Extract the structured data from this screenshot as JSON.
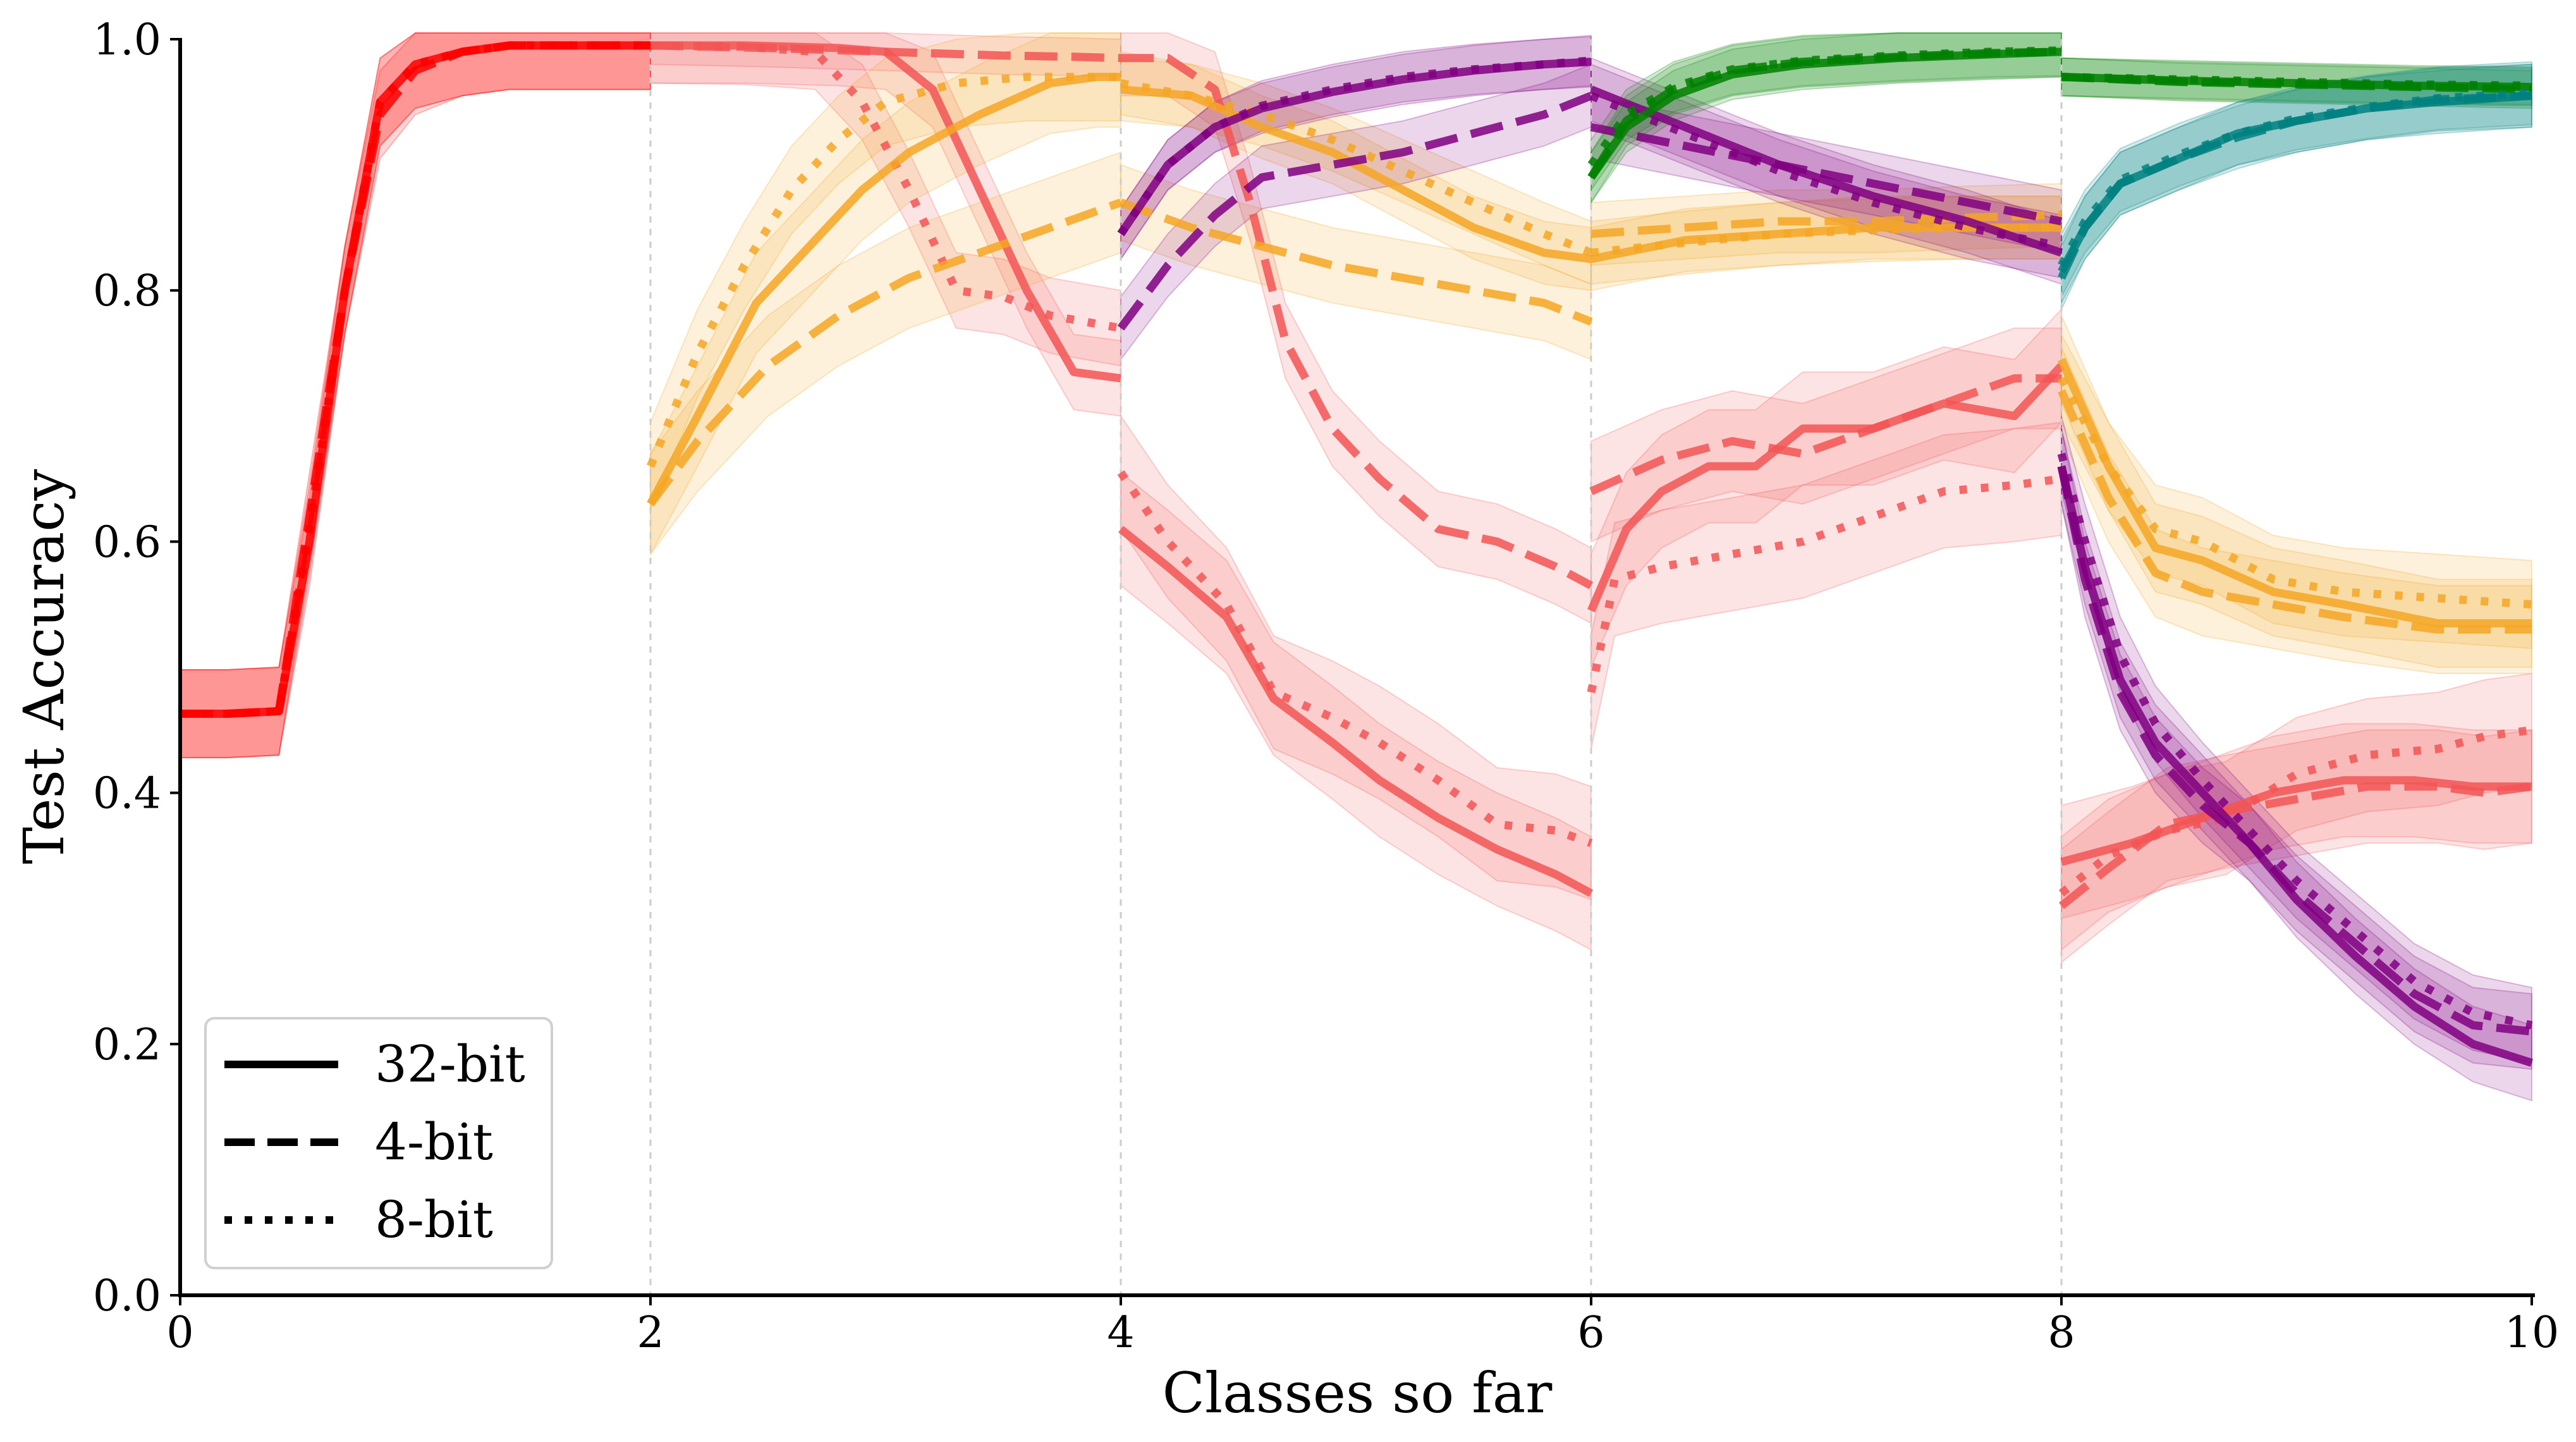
{
  "chart_data": {
    "type": "line",
    "xlabel": "Classes so far",
    "ylabel": "Test Accuracy",
    "xlim": [
      0,
      10
    ],
    "ylim": [
      0,
      1
    ],
    "xticks": [
      "0",
      "2",
      "4",
      "6",
      "8",
      "10"
    ],
    "yticks": [
      "0.0",
      "0.2",
      "0.4",
      "0.6",
      "0.8",
      "1.0"
    ],
    "task_boundaries": [
      2,
      4,
      6,
      8
    ],
    "grid": false,
    "legend_position": "lower-left",
    "legend": [
      {
        "label": "32-bit",
        "style": "solid"
      },
      {
        "label": "4-bit",
        "style": "dashed"
      },
      {
        "label": "8-bit",
        "style": "dotted"
      }
    ],
    "colors": {
      "class-0-1": "#ff0000",
      "class-2-3": "#f5a623",
      "class-4-5": "#800080",
      "class-6-7": "#008000",
      "class-8-9": "#008080",
      "class-0-1-late": "#f25555"
    },
    "series": [
      {
        "color": "class-0-1",
        "style": "solid",
        "x": [
          0,
          0.2,
          0.42,
          0.55,
          0.7,
          0.85,
          1.0,
          1.2,
          1.4,
          1.6,
          2.0
        ],
        "y": [
          0.463,
          0.463,
          0.465,
          0.6,
          0.8,
          0.95,
          0.98,
          0.99,
          0.995,
          0.995,
          0.995
        ],
        "band": 0.035
      },
      {
        "color": "class-0-1",
        "style": "dashed",
        "x": [
          0,
          0.2,
          0.42,
          0.55,
          0.7,
          0.85,
          1.0,
          1.2,
          1.4,
          1.6,
          2.0
        ],
        "y": [
          0.463,
          0.463,
          0.465,
          0.62,
          0.8,
          0.94,
          0.975,
          0.99,
          0.995,
          0.995,
          0.995
        ],
        "band": 0.035
      },
      {
        "color": "class-0-1",
        "style": "dotted",
        "x": [
          0,
          0.2,
          0.42,
          0.55,
          0.7,
          0.85,
          1.0,
          1.2,
          1.4,
          1.6,
          2.0
        ],
        "y": [
          0.463,
          0.463,
          0.465,
          0.61,
          0.8,
          0.95,
          0.98,
          0.99,
          0.995,
          0.995,
          0.995
        ],
        "band": 0.035
      },
      {
        "color": "class-0-1-late",
        "style": "solid",
        "x": [
          2,
          2.4,
          2.8,
          3.0,
          3.2,
          3.4,
          3.6,
          3.8,
          4.0
        ],
        "y": [
          0.995,
          0.995,
          0.993,
          0.99,
          0.96,
          0.88,
          0.8,
          0.735,
          0.73
        ],
        "band": 0.03
      },
      {
        "color": "class-0-1-late",
        "style": "dashed",
        "x": [
          2,
          2.5,
          3.0,
          3.5,
          3.8,
          4.0
        ],
        "y": [
          0.995,
          0.993,
          0.99,
          0.987,
          0.986,
          0.985
        ],
        "band": 0.015
      },
      {
        "color": "class-0-1-late",
        "style": "dotted",
        "x": [
          2,
          2.4,
          2.7,
          2.9,
          3.1,
          3.3,
          3.5,
          3.7,
          4.0
        ],
        "y": [
          0.995,
          0.994,
          0.99,
          0.95,
          0.88,
          0.8,
          0.795,
          0.78,
          0.77
        ],
        "band": 0.03
      },
      {
        "color": "class-2-3",
        "style": "solid",
        "x": [
          2.0,
          2.2,
          2.45,
          2.7,
          2.9,
          3.1,
          3.4,
          3.7,
          3.9,
          4.0
        ],
        "y": [
          0.63,
          0.7,
          0.79,
          0.84,
          0.88,
          0.91,
          0.94,
          0.965,
          0.97,
          0.97
        ],
        "band": 0.04
      },
      {
        "color": "class-2-3",
        "style": "dashed",
        "x": [
          2.0,
          2.2,
          2.5,
          2.8,
          3.1,
          3.4,
          3.7,
          4.0
        ],
        "y": [
          0.63,
          0.68,
          0.74,
          0.78,
          0.81,
          0.83,
          0.85,
          0.87
        ],
        "band": 0.04
      },
      {
        "color": "class-2-3",
        "style": "dotted",
        "x": [
          2.0,
          2.2,
          2.4,
          2.6,
          2.8,
          3.0,
          3.3,
          3.6,
          4.0
        ],
        "y": [
          0.66,
          0.75,
          0.82,
          0.88,
          0.92,
          0.95,
          0.965,
          0.97,
          0.97
        ],
        "band": 0.035
      },
      {
        "color": "class-0-1-late",
        "style": "solid",
        "x": [
          4.0,
          4.2,
          4.45,
          4.65,
          4.9,
          5.1,
          5.35,
          5.6,
          5.85,
          6.0
        ],
        "y": [
          0.61,
          0.58,
          0.54,
          0.475,
          0.44,
          0.41,
          0.38,
          0.355,
          0.335,
          0.32
        ],
        "band": 0.045
      },
      {
        "color": "class-0-1-late",
        "style": "dashed",
        "x": [
          4.0,
          4.2,
          4.4,
          4.55,
          4.7,
          4.9,
          5.1,
          5.35,
          5.6,
          5.85,
          6.0
        ],
        "y": [
          0.985,
          0.985,
          0.96,
          0.87,
          0.76,
          0.69,
          0.65,
          0.61,
          0.6,
          0.58,
          0.565
        ],
        "band": 0.03
      },
      {
        "color": "class-0-1-late",
        "style": "dotted",
        "x": [
          4.0,
          4.2,
          4.45,
          4.65,
          4.9,
          5.1,
          5.35,
          5.6,
          5.85,
          6.0
        ],
        "y": [
          0.655,
          0.6,
          0.55,
          0.48,
          0.46,
          0.44,
          0.41,
          0.375,
          0.37,
          0.36
        ],
        "band": 0.045
      },
      {
        "color": "class-2-3",
        "style": "solid",
        "x": [
          4.0,
          4.3,
          4.6,
          4.9,
          5.2,
          5.5,
          5.8,
          6.0
        ],
        "y": [
          0.96,
          0.955,
          0.93,
          0.91,
          0.88,
          0.85,
          0.83,
          0.825
        ],
        "band": 0.025
      },
      {
        "color": "class-2-3",
        "style": "dashed",
        "x": [
          4.0,
          4.3,
          4.6,
          4.9,
          5.2,
          5.5,
          5.8,
          6.0
        ],
        "y": [
          0.87,
          0.85,
          0.835,
          0.82,
          0.81,
          0.8,
          0.79,
          0.775
        ],
        "band": 0.03
      },
      {
        "color": "class-2-3",
        "style": "dotted",
        "x": [
          4.0,
          4.3,
          4.6,
          4.9,
          5.2,
          5.5,
          5.8,
          6.0
        ],
        "y": [
          0.965,
          0.955,
          0.94,
          0.92,
          0.895,
          0.87,
          0.845,
          0.83
        ],
        "band": 0.025
      },
      {
        "color": "class-4-5",
        "style": "solid",
        "x": [
          4.0,
          4.2,
          4.4,
          4.6,
          4.9,
          5.2,
          5.5,
          5.8,
          6.0
        ],
        "y": [
          0.845,
          0.9,
          0.93,
          0.945,
          0.958,
          0.968,
          0.975,
          0.98,
          0.982
        ],
        "band": 0.02
      },
      {
        "color": "class-4-5",
        "style": "dashed",
        "x": [
          4.0,
          4.2,
          4.4,
          4.6,
          4.9,
          5.2,
          5.5,
          5.8,
          6.0
        ],
        "y": [
          0.77,
          0.82,
          0.86,
          0.89,
          0.9,
          0.91,
          0.925,
          0.94,
          0.955
        ],
        "band": 0.025
      },
      {
        "color": "class-4-5",
        "style": "dotted",
        "x": [
          4.0,
          4.2,
          4.4,
          4.6,
          4.9,
          5.2,
          5.5,
          5.8,
          6.0
        ],
        "y": [
          0.845,
          0.9,
          0.93,
          0.947,
          0.96,
          0.97,
          0.976,
          0.98,
          0.983
        ],
        "band": 0.02
      },
      {
        "color": "class-0-1-late",
        "style": "solid",
        "x": [
          6.0,
          6.15,
          6.3,
          6.5,
          6.7,
          6.9,
          7.2,
          7.5,
          7.8,
          8.0
        ],
        "y": [
          0.545,
          0.61,
          0.64,
          0.66,
          0.66,
          0.69,
          0.69,
          0.71,
          0.7,
          0.74
        ],
        "band": 0.045
      },
      {
        "color": "class-0-1-late",
        "style": "dashed",
        "x": [
          6.0,
          6.3,
          6.6,
          6.9,
          7.2,
          7.5,
          7.8,
          8.0
        ],
        "y": [
          0.64,
          0.665,
          0.68,
          0.67,
          0.69,
          0.71,
          0.73,
          0.73
        ],
        "band": 0.04
      },
      {
        "color": "class-0-1-late",
        "style": "dotted",
        "x": [
          6.0,
          6.1,
          6.3,
          6.6,
          6.9,
          7.2,
          7.5,
          7.8,
          8.0
        ],
        "y": [
          0.48,
          0.57,
          0.58,
          0.59,
          0.6,
          0.62,
          0.64,
          0.645,
          0.65
        ],
        "band": 0.045
      },
      {
        "color": "class-2-3",
        "style": "solid",
        "x": [
          6.0,
          6.4,
          6.8,
          7.2,
          7.6,
          8.0
        ],
        "y": [
          0.825,
          0.84,
          0.845,
          0.85,
          0.85,
          0.85
        ],
        "band": 0.025
      },
      {
        "color": "class-2-3",
        "style": "dashed",
        "x": [
          6.0,
          6.4,
          6.8,
          7.2,
          7.6,
          8.0
        ],
        "y": [
          0.845,
          0.85,
          0.855,
          0.855,
          0.858,
          0.86
        ],
        "band": 0.025
      },
      {
        "color": "class-2-3",
        "style": "dotted",
        "x": [
          6.0,
          6.4,
          6.8,
          7.2,
          7.6,
          8.0
        ],
        "y": [
          0.83,
          0.838,
          0.845,
          0.848,
          0.85,
          0.85
        ],
        "band": 0.025
      },
      {
        "color": "class-4-5",
        "style": "solid",
        "x": [
          6.0,
          6.4,
          6.8,
          7.2,
          7.6,
          8.0
        ],
        "y": [
          0.96,
          0.93,
          0.9,
          0.875,
          0.855,
          0.83
        ],
        "band": 0.025
      },
      {
        "color": "class-4-5",
        "style": "dashed",
        "x": [
          6.0,
          6.4,
          6.8,
          7.2,
          7.6,
          8.0
        ],
        "y": [
          0.93,
          0.915,
          0.9,
          0.885,
          0.87,
          0.855
        ],
        "band": 0.025
      },
      {
        "color": "class-4-5",
        "style": "dotted",
        "x": [
          6.0,
          6.4,
          6.8,
          7.2,
          7.6,
          8.0
        ],
        "y": [
          0.955,
          0.925,
          0.895,
          0.87,
          0.85,
          0.835
        ],
        "band": 0.025
      },
      {
        "color": "class-6-7",
        "style": "solid",
        "x": [
          6.0,
          6.15,
          6.35,
          6.6,
          6.9,
          7.3,
          7.7,
          8.0
        ],
        "y": [
          0.89,
          0.93,
          0.955,
          0.972,
          0.98,
          0.985,
          0.988,
          0.99
        ],
        "band": 0.02
      },
      {
        "color": "class-6-7",
        "style": "dashed",
        "x": [
          6.0,
          6.15,
          6.35,
          6.6,
          6.9,
          7.3,
          7.7,
          8.0
        ],
        "y": [
          0.89,
          0.935,
          0.96,
          0.975,
          0.982,
          0.986,
          0.989,
          0.99
        ],
        "band": 0.02
      },
      {
        "color": "class-6-7",
        "style": "dotted",
        "x": [
          6.0,
          6.15,
          6.35,
          6.6,
          6.9,
          7.3,
          7.7,
          8.0
        ],
        "y": [
          0.9,
          0.94,
          0.962,
          0.976,
          0.983,
          0.987,
          0.99,
          0.991
        ],
        "band": 0.02
      },
      {
        "color": "class-0-1-late",
        "style": "solid",
        "x": [
          8.0,
          8.3,
          8.6,
          8.9,
          9.2,
          9.5,
          9.75,
          10.0
        ],
        "y": [
          0.345,
          0.36,
          0.38,
          0.4,
          0.41,
          0.41,
          0.405,
          0.405
        ],
        "band": 0.045
      },
      {
        "color": "class-0-1-late",
        "style": "dashed",
        "x": [
          8.0,
          8.2,
          8.45,
          8.7,
          9.0,
          9.3,
          9.6,
          9.8,
          10.0
        ],
        "y": [
          0.31,
          0.34,
          0.375,
          0.385,
          0.395,
          0.405,
          0.405,
          0.4,
          0.405
        ],
        "band": 0.045
      },
      {
        "color": "class-0-1-late",
        "style": "dotted",
        "x": [
          8.0,
          8.2,
          8.45,
          8.7,
          9.0,
          9.3,
          9.6,
          9.8,
          10.0
        ],
        "y": [
          0.32,
          0.35,
          0.37,
          0.38,
          0.415,
          0.43,
          0.435,
          0.445,
          0.45
        ],
        "band": 0.045
      },
      {
        "color": "class-2-3",
        "style": "solid",
        "x": [
          8.0,
          8.2,
          8.4,
          8.6,
          8.9,
          9.2,
          9.6,
          10.0
        ],
        "y": [
          0.745,
          0.66,
          0.595,
          0.585,
          0.56,
          0.55,
          0.535,
          0.535
        ],
        "band": 0.035
      },
      {
        "color": "class-2-3",
        "style": "dashed",
        "x": [
          8.0,
          8.2,
          8.4,
          8.6,
          8.9,
          9.2,
          9.6,
          10.0
        ],
        "y": [
          0.72,
          0.635,
          0.575,
          0.56,
          0.55,
          0.54,
          0.53,
          0.53
        ],
        "band": 0.035
      },
      {
        "color": "class-2-3",
        "style": "dotted",
        "x": [
          8.0,
          8.2,
          8.4,
          8.6,
          8.9,
          9.2,
          9.6,
          10.0
        ],
        "y": [
          0.73,
          0.66,
          0.61,
          0.6,
          0.57,
          0.56,
          0.555,
          0.55
        ],
        "band": 0.035
      },
      {
        "color": "class-4-5",
        "style": "solid",
        "x": [
          8.0,
          8.1,
          8.25,
          8.4,
          8.6,
          8.8,
          9.0,
          9.25,
          9.5,
          9.75,
          10.0
        ],
        "y": [
          0.66,
          0.58,
          0.49,
          0.44,
          0.4,
          0.36,
          0.315,
          0.27,
          0.23,
          0.2,
          0.185
        ],
        "band": 0.03
      },
      {
        "color": "class-4-5",
        "style": "dashed",
        "x": [
          8.0,
          8.1,
          8.25,
          8.4,
          8.6,
          8.8,
          9.0,
          9.25,
          9.5,
          9.75,
          10.0
        ],
        "y": [
          0.66,
          0.57,
          0.48,
          0.43,
          0.39,
          0.36,
          0.32,
          0.28,
          0.24,
          0.215,
          0.21
        ],
        "band": 0.03
      },
      {
        "color": "class-4-5",
        "style": "dotted",
        "x": [
          8.0,
          8.1,
          8.25,
          8.4,
          8.6,
          8.8,
          9.0,
          9.25,
          9.5,
          9.75,
          10.0
        ],
        "y": [
          0.67,
          0.6,
          0.51,
          0.455,
          0.41,
          0.37,
          0.33,
          0.29,
          0.25,
          0.225,
          0.215
        ],
        "band": 0.03
      },
      {
        "color": "class-6-7",
        "style": "solid",
        "x": [
          8.0,
          8.5,
          9.0,
          9.5,
          10.0
        ],
        "y": [
          0.97,
          0.967,
          0.965,
          0.963,
          0.962
        ],
        "band": 0.015
      },
      {
        "color": "class-6-7",
        "style": "dashed",
        "x": [
          8.0,
          8.5,
          9.0,
          9.5,
          10.0
        ],
        "y": [
          0.97,
          0.966,
          0.964,
          0.962,
          0.96
        ],
        "band": 0.015
      },
      {
        "color": "class-6-7",
        "style": "dotted",
        "x": [
          8.0,
          8.5,
          9.0,
          9.5,
          10.0
        ],
        "y": [
          0.97,
          0.968,
          0.966,
          0.964,
          0.963
        ],
        "band": 0.015
      },
      {
        "color": "class-8-9",
        "style": "solid",
        "x": [
          8.0,
          8.1,
          8.25,
          8.5,
          8.75,
          9.0,
          9.3,
          9.6,
          10.0
        ],
        "y": [
          0.815,
          0.85,
          0.885,
          0.905,
          0.925,
          0.935,
          0.945,
          0.95,
          0.955
        ],
        "band": 0.025
      },
      {
        "color": "class-8-9",
        "style": "dashed",
        "x": [
          8.0,
          8.1,
          8.25,
          8.5,
          8.75,
          9.0,
          9.3,
          9.6,
          10.0
        ],
        "y": [
          0.81,
          0.85,
          0.885,
          0.905,
          0.922,
          0.935,
          0.945,
          0.952,
          0.955
        ],
        "band": 0.025
      },
      {
        "color": "class-8-9",
        "style": "dotted",
        "x": [
          8.0,
          8.1,
          8.25,
          8.5,
          8.75,
          9.0,
          9.3,
          9.6,
          10.0
        ],
        "y": [
          0.82,
          0.855,
          0.888,
          0.908,
          0.925,
          0.937,
          0.946,
          0.953,
          0.957
        ],
        "band": 0.025
      }
    ]
  }
}
